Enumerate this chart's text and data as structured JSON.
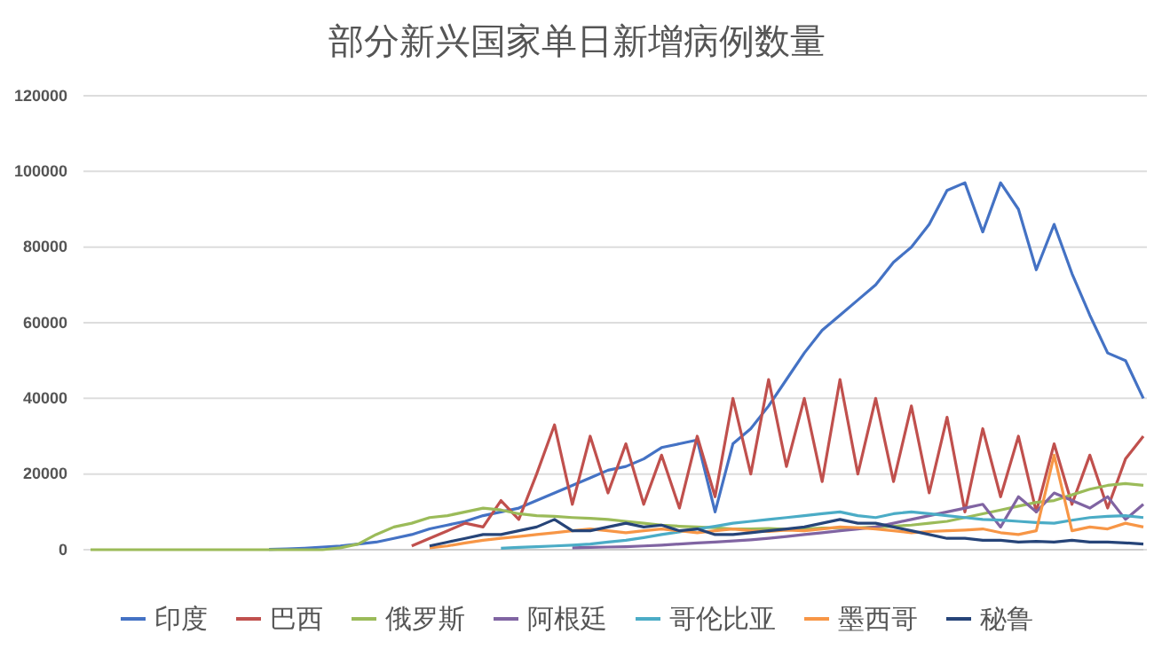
{
  "chart_data": {
    "type": "line",
    "title": "部分新兴国家单日新增病例数量",
    "categories": [
      null,
      null,
      null,
      null,
      null,
      null,
      null,
      null,
      null,
      null,
      null,
      null,
      null,
      null,
      null,
      null,
      null,
      null,
      null,
      null,
      null,
      null,
      null,
      null,
      null,
      null,
      null,
      null,
      null,
      null,
      null,
      null,
      null,
      null,
      null,
      null,
      null,
      null,
      null,
      null,
      null,
      null,
      null,
      null,
      null,
      null,
      null,
      null,
      null,
      null,
      null,
      null,
      null,
      null,
      null,
      null,
      null,
      null,
      null,
      null
    ],
    "ylim": [
      0,
      120000
    ],
    "yticks": [
      0,
      20000,
      40000,
      60000,
      80000,
      100000,
      120000
    ],
    "grid": "y",
    "legend": "bottom",
    "marker": "none",
    "line_style": "solid",
    "series": [
      {
        "name": "印度",
        "color": "#4472c4",
        "values": [
          null,
          null,
          null,
          null,
          null,
          null,
          null,
          null,
          null,
          null,
          100,
          200,
          400,
          700,
          1000,
          1500,
          2000,
          3000,
          4000,
          5500,
          6500,
          7500,
          9000,
          10000,
          11000,
          13000,
          15000,
          17000,
          19000,
          21000,
          22000,
          24000,
          27000,
          28000,
          29000,
          10000,
          28000,
          32000,
          38000,
          45000,
          52000,
          58000,
          62000,
          66000,
          70000,
          76000,
          80000,
          86000,
          95000,
          97000,
          84000,
          97000,
          90000,
          74000,
          86000,
          73000,
          62000,
          52000,
          50000,
          40000
        ]
      },
      {
        "name": "巴西",
        "color": "#c0504d",
        "values": [
          null,
          null,
          null,
          null,
          null,
          null,
          null,
          null,
          null,
          null,
          null,
          null,
          null,
          null,
          null,
          null,
          null,
          null,
          1000,
          3000,
          5000,
          7000,
          6000,
          13000,
          8000,
          20000,
          33000,
          12000,
          30000,
          15000,
          28000,
          12000,
          25000,
          11000,
          30000,
          14000,
          40000,
          20000,
          45000,
          22000,
          40000,
          18000,
          45000,
          20000,
          40000,
          18000,
          38000,
          15000,
          35000,
          10000,
          32000,
          14000,
          30000,
          10000,
          28000,
          12000,
          25000,
          11000,
          24000,
          30000
        ]
      },
      {
        "name": "俄罗斯",
        "color": "#9bbb59",
        "values": [
          0,
          0,
          0,
          0,
          0,
          0,
          0,
          0,
          0,
          0,
          0,
          0,
          0,
          0,
          500,
          1500,
          4000,
          6000,
          7000,
          8500,
          9000,
          10000,
          11000,
          10500,
          9500,
          9000,
          8800,
          8500,
          8300,
          8000,
          7500,
          7000,
          6500,
          6200,
          6000,
          5800,
          5500,
          5500,
          5600,
          5400,
          5500,
          5700,
          5800,
          5800,
          6000,
          6200,
          6500,
          7000,
          7500,
          8500,
          9500,
          10500,
          11500,
          12500,
          13000,
          14500,
          16000,
          17000,
          17500,
          17000
        ]
      },
      {
        "name": "阿根廷",
        "color": "#8064a2",
        "values": [
          null,
          null,
          null,
          null,
          null,
          null,
          null,
          null,
          null,
          null,
          null,
          null,
          null,
          null,
          null,
          null,
          null,
          null,
          null,
          null,
          null,
          null,
          null,
          null,
          null,
          null,
          null,
          500,
          600,
          700,
          800,
          1000,
          1200,
          1500,
          1800,
          2000,
          2300,
          2600,
          3000,
          3500,
          4000,
          4500,
          5000,
          5500,
          6000,
          7000,
          8000,
          9000,
          10000,
          11000,
          12000,
          6000,
          14000,
          10000,
          15000,
          13000,
          11000,
          14000,
          8000,
          12000
        ]
      },
      {
        "name": "哥伦比亚",
        "color": "#4bacc6",
        "values": [
          null,
          null,
          null,
          null,
          null,
          null,
          null,
          null,
          null,
          null,
          null,
          null,
          null,
          null,
          null,
          null,
          null,
          null,
          null,
          null,
          null,
          null,
          null,
          400,
          600,
          800,
          1000,
          1200,
          1500,
          2000,
          2500,
          3200,
          4000,
          4700,
          5500,
          6200,
          7000,
          7500,
          8000,
          8500,
          9000,
          9500,
          10000,
          9000,
          8500,
          9500,
          10000,
          9500,
          9000,
          8500,
          8000,
          7800,
          7500,
          7200,
          7000,
          7800,
          8500,
          8800,
          9000,
          8500
        ]
      },
      {
        "name": "墨西哥",
        "color": "#f79646",
        "values": [
          null,
          null,
          null,
          null,
          null,
          null,
          null,
          null,
          null,
          null,
          null,
          null,
          null,
          null,
          null,
          null,
          null,
          null,
          null,
          500,
          1000,
          1800,
          2500,
          3000,
          3500,
          4000,
          4500,
          5000,
          5500,
          5000,
          4500,
          5000,
          5500,
          5000,
          4500,
          5000,
          5500,
          5000,
          4800,
          5200,
          5000,
          5500,
          6000,
          5800,
          5500,
          5000,
          4500,
          4800,
          5000,
          5200,
          5500,
          4500,
          4000,
          5000,
          25000,
          5000,
          6000,
          5500,
          7000,
          6000
        ]
      },
      {
        "name": "秘鲁",
        "color": "#264478",
        "values": [
          null,
          null,
          null,
          null,
          null,
          null,
          null,
          null,
          null,
          null,
          null,
          null,
          null,
          null,
          null,
          null,
          null,
          null,
          null,
          1000,
          2000,
          3000,
          4000,
          4000,
          5000,
          6000,
          8000,
          5000,
          5000,
          6000,
          7000,
          6000,
          6500,
          5000,
          5500,
          4000,
          4000,
          4500,
          5000,
          5500,
          6000,
          7000,
          8000,
          7000,
          7000,
          6000,
          5000,
          4000,
          3000,
          3000,
          2500,
          2500,
          2000,
          2200,
          2000,
          2500,
          2000,
          2000,
          1800,
          1500
        ]
      }
    ]
  }
}
